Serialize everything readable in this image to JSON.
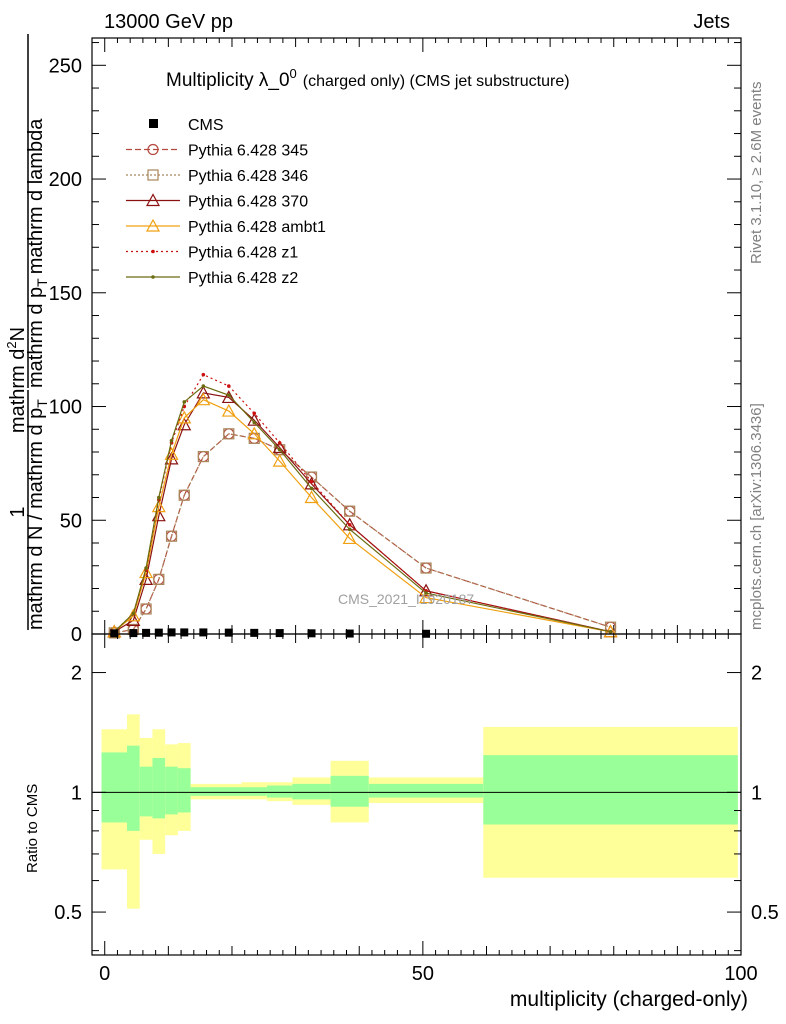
{
  "header": {
    "left": "13000 GeV pp",
    "right": "Jets"
  },
  "side": {
    "rivet": "Rivet 3.1.10, ≥ 2.6M events",
    "mcplots": "mcplots.cern.ch [arXiv:1306.3436]"
  },
  "chart_data": {
    "type": "line",
    "title_main": "Multiplicity λ_0",
    "title_sup": "0",
    "title_sub": "(charged only) (CMS jet substructure)",
    "watermark": "CMS_2021_I1920187",
    "ylabel_num_1": "1",
    "ylabel_den": "mathrm d N / mathrm d p",
    "ylabel_den2": "mathrm d p",
    "ylabel_den_sub": "T",
    "ylabel_num2": "mathrm d",
    "ylabel_num2_sup": "2",
    "ylabel_num2_rest": "N",
    "ylabel_den_rest": "mathrm d lambda",
    "ylabel_t": "T",
    "xlabel": "multiplicity (charged-only)",
    "ratio_ylabel": "Ratio to CMS",
    "xlim": [
      -2,
      100
    ],
    "ylim": [
      0,
      262
    ],
    "ratio_ylim": [
      0.39,
      2.5
    ],
    "x_ticks": [
      0,
      50,
      100
    ],
    "y_ticks": [
      0,
      50,
      100,
      150,
      200,
      250
    ],
    "ratio_ticks": [
      "0.5",
      "1",
      "2"
    ],
    "legend_position": "top-left",
    "data_x": [
      1.5,
      4.5,
      6.5,
      8.5,
      10.5,
      12.5,
      15.5,
      19.5,
      23.5,
      27.5,
      32.5,
      38.5,
      50.5
    ],
    "data_y": [
      0.3,
      0.4,
      0.5,
      0.6,
      0.7,
      0.7,
      0.7,
      0.6,
      0.5,
      0.4,
      0.3,
      0.2,
      0.1
    ],
    "series": [
      {
        "name": "Pythia 6.428 345",
        "color": "#b5483f",
        "dash": "6,3",
        "marker": "circle",
        "x": [
          1.5,
          4.5,
          6.5,
          8.5,
          10.5,
          12.5,
          15.5,
          19.5,
          23.5,
          27.5,
          32.5,
          38.5,
          50.5,
          79.5
        ],
        "y": [
          0.5,
          2,
          11,
          24,
          43,
          61,
          78,
          88,
          86,
          81,
          69,
          54,
          29,
          3
        ]
      },
      {
        "name": "Pythia 6.428 346",
        "color": "#a8865a",
        "dash": "2,2",
        "marker": "square",
        "x": [
          1.5,
          4.5,
          6.5,
          8.5,
          10.5,
          12.5,
          15.5,
          19.5,
          23.5,
          27.5,
          32.5,
          38.5,
          50.5,
          79.5
        ],
        "y": [
          0.5,
          2,
          11,
          24,
          43,
          61,
          78,
          88,
          86,
          81,
          69,
          54,
          29,
          3
        ]
      },
      {
        "name": "Pythia 6.428 370",
        "color": "#8b1010",
        "dash": "",
        "marker": "triangle",
        "x": [
          1.5,
          4.5,
          6.5,
          8.5,
          10.5,
          12.5,
          15.5,
          19.5,
          23.5,
          27.5,
          32.5,
          38.5,
          50.5,
          79.5
        ],
        "y": [
          1,
          6,
          24,
          52,
          77,
          92,
          106,
          104,
          94,
          82,
          66,
          48,
          19,
          1
        ]
      },
      {
        "name": "Pythia 6.428 ambt1",
        "color": "#f0a010",
        "dash": "",
        "marker": "triangle",
        "x": [
          1.5,
          4.5,
          6.5,
          8.5,
          10.5,
          12.5,
          15.5,
          19.5,
          23.5,
          27.5,
          32.5,
          38.5,
          50.5,
          79.5
        ],
        "y": [
          1,
          8,
          27,
          56,
          79,
          95,
          103,
          98,
          88,
          76,
          60,
          42,
          16,
          1
        ]
      },
      {
        "name": "Pythia 6.428 z1",
        "color": "#cc1010",
        "dash": "2,3",
        "marker": "dot",
        "x": [
          1.5,
          4.5,
          6.5,
          8.5,
          10.5,
          12.5,
          15.5,
          19.5,
          23.5,
          27.5,
          32.5,
          38.5,
          50.5,
          79.5
        ],
        "y": [
          1,
          9,
          28,
          59,
          84,
          100,
          114,
          109,
          97,
          84,
          67,
          48,
          19,
          1
        ]
      },
      {
        "name": "Pythia 6.428 z2",
        "color": "#6b6b10",
        "dash": "",
        "marker": "dot",
        "x": [
          1.5,
          4.5,
          6.5,
          8.5,
          10.5,
          12.5,
          15.5,
          19.5,
          23.5,
          27.5,
          32.5,
          38.5,
          50.5,
          79.5
        ],
        "y": [
          1,
          9,
          29,
          60,
          85,
          102,
          109,
          105,
          93,
          81,
          64,
          46,
          18,
          1
        ]
      }
    ],
    "ratio_bands": [
      {
        "x0": -0.5,
        "x1": 3.5,
        "y_lo": 0.64,
        "y_hi": 1.44,
        "g_lo": 0.84,
        "g_hi": 1.26
      },
      {
        "x0": 3.5,
        "x1": 5.5,
        "y_lo": 0.51,
        "y_hi": 1.57,
        "g_lo": 0.8,
        "g_hi": 1.31
      },
      {
        "x0": 5.5,
        "x1": 7.5,
        "y_lo": 0.76,
        "y_hi": 1.37,
        "g_lo": 0.87,
        "g_hi": 1.16
      },
      {
        "x0": 7.5,
        "x1": 9.5,
        "y_lo": 0.7,
        "y_hi": 1.44,
        "g_lo": 0.86,
        "g_hi": 1.22
      },
      {
        "x0": 9.5,
        "x1": 11.5,
        "y_lo": 0.78,
        "y_hi": 1.32,
        "g_lo": 0.88,
        "g_hi": 1.16
      },
      {
        "x0": 11.5,
        "x1": 13.5,
        "y_lo": 0.8,
        "y_hi": 1.33,
        "g_lo": 0.89,
        "g_hi": 1.15
      },
      {
        "x0": 13.5,
        "x1": 21.5,
        "y_lo": 0.96,
        "y_hi": 1.05,
        "g_lo": 0.98,
        "g_hi": 1.03
      },
      {
        "x0": 21.5,
        "x1": 25.5,
        "y_lo": 0.96,
        "y_hi": 1.06,
        "g_lo": 0.98,
        "g_hi": 1.03
      },
      {
        "x0": 25.5,
        "x1": 29.5,
        "y_lo": 0.95,
        "y_hi": 1.06,
        "g_lo": 0.97,
        "g_hi": 1.04
      },
      {
        "x0": 29.5,
        "x1": 35.5,
        "y_lo": 0.93,
        "y_hi": 1.09,
        "g_lo": 0.96,
        "g_hi": 1.05
      },
      {
        "x0": 35.5,
        "x1": 41.5,
        "y_lo": 0.84,
        "y_hi": 1.2,
        "g_lo": 0.92,
        "g_hi": 1.1
      },
      {
        "x0": 41.5,
        "x1": 59.5,
        "y_lo": 0.94,
        "y_hi": 1.09,
        "g_lo": 0.97,
        "g_hi": 1.05
      },
      {
        "x0": 59.5,
        "x1": 99.5,
        "y_lo": 0.61,
        "y_hi": 1.46,
        "g_lo": 0.83,
        "g_hi": 1.24
      }
    ]
  },
  "colors": {
    "band_yellow": "#ffff99",
    "band_green": "#99ff99",
    "data_marker": "#000000"
  }
}
